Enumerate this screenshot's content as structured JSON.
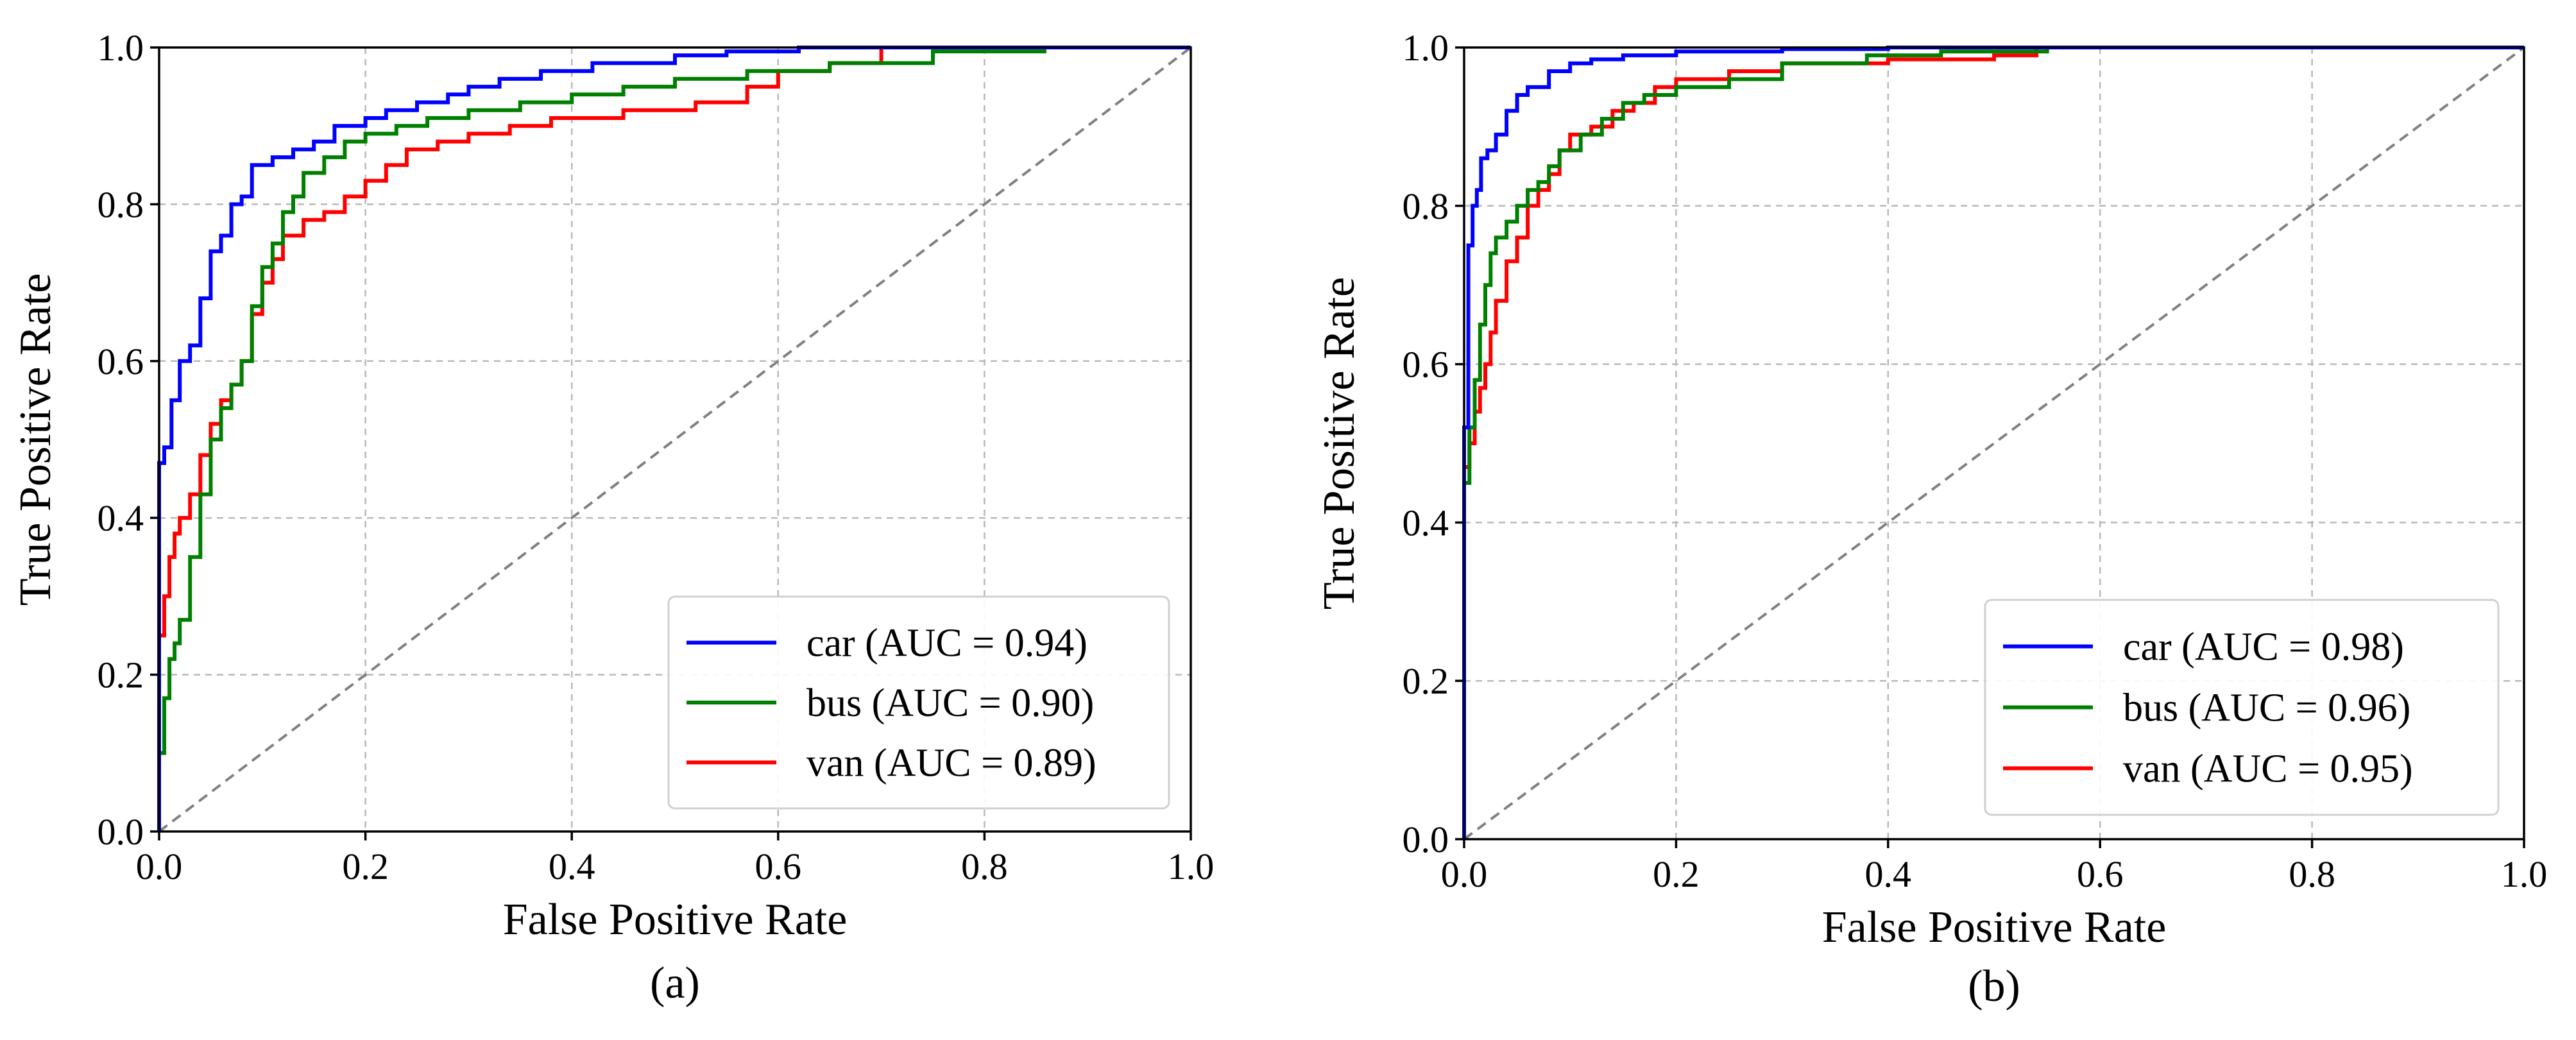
{
  "chart_data": [
    {
      "type": "line",
      "subtitle": "(a)",
      "title": "",
      "xlabel": "False Positive Rate",
      "ylabel": "True Positive Rate",
      "xlim": [
        0.0,
        1.0
      ],
      "ylim": [
        0.0,
        1.0
      ],
      "xticks": [
        "0.0",
        "0.2",
        "0.4",
        "0.6",
        "0.8",
        "1.0"
      ],
      "yticks": [
        "0.0",
        "0.2",
        "0.4",
        "0.6",
        "0.8",
        "1.0"
      ],
      "grid": true,
      "legend_position": "lower-right",
      "chance_line": {
        "x": [
          0,
          1
        ],
        "y": [
          0,
          1
        ],
        "color": "#808080",
        "style": "dashed"
      },
      "series": [
        {
          "name": "car",
          "label": "car (AUC = 0.94)",
          "color": "#0000ff",
          "x": [
            0,
            0,
            0.005,
            0.005,
            0.012,
            0.012,
            0.02,
            0.02,
            0.03,
            0.03,
            0.04,
            0.04,
            0.05,
            0.05,
            0.06,
            0.06,
            0.07,
            0.07,
            0.08,
            0.08,
            0.09,
            0.09,
            0.11,
            0.11,
            0.13,
            0.13,
            0.15,
            0.15,
            0.17,
            0.17,
            0.2,
            0.2,
            0.22,
            0.22,
            0.25,
            0.25,
            0.28,
            0.28,
            0.3,
            0.3,
            0.33,
            0.33,
            0.37,
            0.37,
            0.42,
            0.42,
            0.5,
            0.5,
            0.55,
            0.55,
            0.62,
            0.62,
            0.7,
            0.7,
            1.0
          ],
          "y": [
            0,
            0.47,
            0.47,
            0.49,
            0.49,
            0.55,
            0.55,
            0.6,
            0.6,
            0.62,
            0.62,
            0.68,
            0.68,
            0.74,
            0.74,
            0.76,
            0.76,
            0.8,
            0.8,
            0.81,
            0.81,
            0.85,
            0.85,
            0.86,
            0.86,
            0.87,
            0.87,
            0.88,
            0.88,
            0.9,
            0.9,
            0.91,
            0.91,
            0.92,
            0.92,
            0.93,
            0.93,
            0.94,
            0.94,
            0.95,
            0.95,
            0.96,
            0.96,
            0.97,
            0.97,
            0.98,
            0.98,
            0.99,
            0.99,
            0.995,
            0.995,
            1.0,
            1.0,
            1.0,
            1.0
          ]
        },
        {
          "name": "bus",
          "label": "bus (AUC = 0.90)",
          "color": "#008000",
          "x": [
            0,
            0,
            0.005,
            0.005,
            0.01,
            0.01,
            0.015,
            0.015,
            0.02,
            0.02,
            0.03,
            0.03,
            0.04,
            0.04,
            0.05,
            0.05,
            0.06,
            0.06,
            0.07,
            0.07,
            0.08,
            0.08,
            0.09,
            0.09,
            0.1,
            0.1,
            0.11,
            0.11,
            0.12,
            0.12,
            0.13,
            0.13,
            0.14,
            0.14,
            0.16,
            0.16,
            0.18,
            0.18,
            0.2,
            0.2,
            0.23,
            0.23,
            0.26,
            0.26,
            0.3,
            0.3,
            0.35,
            0.35,
            0.4,
            0.4,
            0.45,
            0.45,
            0.5,
            0.5,
            0.57,
            0.57,
            0.65,
            0.65,
            0.75,
            0.75,
            0.86
          ],
          "y": [
            0,
            0.1,
            0.1,
            0.17,
            0.17,
            0.22,
            0.22,
            0.24,
            0.24,
            0.27,
            0.27,
            0.35,
            0.35,
            0.43,
            0.43,
            0.5,
            0.5,
            0.54,
            0.54,
            0.57,
            0.57,
            0.6,
            0.6,
            0.67,
            0.67,
            0.72,
            0.72,
            0.75,
            0.75,
            0.79,
            0.79,
            0.81,
            0.81,
            0.84,
            0.84,
            0.86,
            0.86,
            0.88,
            0.88,
            0.89,
            0.89,
            0.9,
            0.9,
            0.91,
            0.91,
            0.92,
            0.92,
            0.93,
            0.93,
            0.94,
            0.94,
            0.95,
            0.95,
            0.96,
            0.96,
            0.97,
            0.97,
            0.98,
            0.98,
            0.995,
            0.995
          ]
        },
        {
          "name": "van",
          "label": "van (AUC = 0.89)",
          "color": "#ff0000",
          "x": [
            0,
            0,
            0.005,
            0.005,
            0.01,
            0.01,
            0.015,
            0.015,
            0.02,
            0.02,
            0.03,
            0.03,
            0.04,
            0.04,
            0.05,
            0.05,
            0.06,
            0.06,
            0.07,
            0.07,
            0.08,
            0.08,
            0.09,
            0.09,
            0.1,
            0.1,
            0.11,
            0.11,
            0.12,
            0.12,
            0.14,
            0.14,
            0.16,
            0.16,
            0.18,
            0.18,
            0.2,
            0.2,
            0.22,
            0.22,
            0.24,
            0.24,
            0.27,
            0.27,
            0.3,
            0.3,
            0.34,
            0.34,
            0.38,
            0.38,
            0.45,
            0.45,
            0.52,
            0.52,
            0.57,
            0.57,
            0.6,
            0.6,
            0.65,
            0.65,
            0.7,
            0.7,
            1.0
          ],
          "y": [
            0,
            0.25,
            0.25,
            0.3,
            0.3,
            0.35,
            0.35,
            0.38,
            0.38,
            0.4,
            0.4,
            0.43,
            0.43,
            0.48,
            0.48,
            0.52,
            0.52,
            0.55,
            0.55,
            0.57,
            0.57,
            0.6,
            0.6,
            0.66,
            0.66,
            0.7,
            0.7,
            0.73,
            0.73,
            0.76,
            0.76,
            0.78,
            0.78,
            0.79,
            0.79,
            0.81,
            0.81,
            0.83,
            0.83,
            0.85,
            0.85,
            0.87,
            0.87,
            0.88,
            0.88,
            0.89,
            0.89,
            0.9,
            0.9,
            0.91,
            0.91,
            0.92,
            0.92,
            0.93,
            0.93,
            0.95,
            0.95,
            0.97,
            0.97,
            0.98,
            0.98,
            1.0,
            1.0
          ]
        }
      ]
    },
    {
      "type": "line",
      "subtitle": "(b)",
      "title": "",
      "xlabel": "False Positive Rate",
      "ylabel": "True Positive Rate",
      "xlim": [
        0.0,
        1.0
      ],
      "ylim": [
        0.0,
        1.0
      ],
      "xticks": [
        "0.0",
        "0.2",
        "0.4",
        "0.6",
        "0.8",
        "1.0"
      ],
      "yticks": [
        "0.0",
        "0.2",
        "0.4",
        "0.6",
        "0.8",
        "1.0"
      ],
      "grid": true,
      "legend_position": "lower-right",
      "chance_line": {
        "x": [
          0,
          1
        ],
        "y": [
          0,
          1
        ],
        "color": "#808080",
        "style": "dashed"
      },
      "series": [
        {
          "name": "car",
          "label": "car (AUC = 0.98)",
          "color": "#0000ff",
          "x": [
            0,
            0,
            0.004,
            0.004,
            0.008,
            0.008,
            0.012,
            0.012,
            0.016,
            0.016,
            0.022,
            0.022,
            0.03,
            0.03,
            0.04,
            0.04,
            0.05,
            0.05,
            0.06,
            0.06,
            0.08,
            0.08,
            0.1,
            0.1,
            0.12,
            0.12,
            0.15,
            0.15,
            0.2,
            0.2,
            0.3,
            0.3,
            0.4,
            0.4,
            1.0
          ],
          "y": [
            0,
            0.52,
            0.52,
            0.75,
            0.75,
            0.8,
            0.8,
            0.82,
            0.82,
            0.86,
            0.86,
            0.87,
            0.87,
            0.89,
            0.89,
            0.92,
            0.92,
            0.94,
            0.94,
            0.95,
            0.95,
            0.97,
            0.97,
            0.98,
            0.98,
            0.985,
            0.985,
            0.99,
            0.99,
            0.995,
            0.995,
            0.998,
            0.998,
            1.0,
            1.0
          ]
        },
        {
          "name": "bus",
          "label": "bus (AUC = 0.96)",
          "color": "#008000",
          "x": [
            0,
            0,
            0.005,
            0.005,
            0.01,
            0.01,
            0.015,
            0.015,
            0.02,
            0.02,
            0.025,
            0.025,
            0.03,
            0.03,
            0.04,
            0.04,
            0.05,
            0.05,
            0.06,
            0.06,
            0.07,
            0.07,
            0.08,
            0.08,
            0.09,
            0.09,
            0.11,
            0.11,
            0.13,
            0.13,
            0.15,
            0.15,
            0.17,
            0.17,
            0.2,
            0.2,
            0.25,
            0.25,
            0.3,
            0.3,
            0.38,
            0.38,
            0.45,
            0.45,
            0.55,
            0.55,
            1.0
          ],
          "y": [
            0,
            0.45,
            0.45,
            0.52,
            0.52,
            0.58,
            0.58,
            0.65,
            0.65,
            0.7,
            0.7,
            0.74,
            0.74,
            0.76,
            0.76,
            0.78,
            0.78,
            0.8,
            0.8,
            0.82,
            0.82,
            0.83,
            0.83,
            0.85,
            0.85,
            0.87,
            0.87,
            0.89,
            0.89,
            0.91,
            0.91,
            0.93,
            0.93,
            0.94,
            0.94,
            0.95,
            0.95,
            0.96,
            0.96,
            0.98,
            0.98,
            0.99,
            0.99,
            0.995,
            0.995,
            1.0,
            1.0
          ]
        },
        {
          "name": "van",
          "label": "van (AUC = 0.95)",
          "color": "#ff0000",
          "x": [
            0,
            0,
            0.005,
            0.005,
            0.01,
            0.01,
            0.015,
            0.015,
            0.02,
            0.02,
            0.025,
            0.025,
            0.03,
            0.03,
            0.04,
            0.04,
            0.05,
            0.05,
            0.06,
            0.06,
            0.07,
            0.07,
            0.08,
            0.08,
            0.09,
            0.09,
            0.1,
            0.1,
            0.12,
            0.12,
            0.14,
            0.14,
            0.16,
            0.16,
            0.18,
            0.18,
            0.2,
            0.2,
            0.25,
            0.25,
            0.3,
            0.3,
            0.4,
            0.4,
            0.5,
            0.5,
            0.54,
            0.54,
            1.0
          ],
          "y": [
            0,
            0.47,
            0.47,
            0.5,
            0.5,
            0.54,
            0.54,
            0.57,
            0.57,
            0.6,
            0.6,
            0.64,
            0.64,
            0.68,
            0.68,
            0.73,
            0.73,
            0.76,
            0.76,
            0.8,
            0.8,
            0.82,
            0.82,
            0.84,
            0.84,
            0.87,
            0.87,
            0.89,
            0.89,
            0.9,
            0.9,
            0.92,
            0.92,
            0.93,
            0.93,
            0.95,
            0.95,
            0.96,
            0.96,
            0.97,
            0.97,
            0.98,
            0.98,
            0.985,
            0.985,
            0.99,
            0.99,
            1.0,
            1.0
          ]
        }
      ]
    }
  ]
}
